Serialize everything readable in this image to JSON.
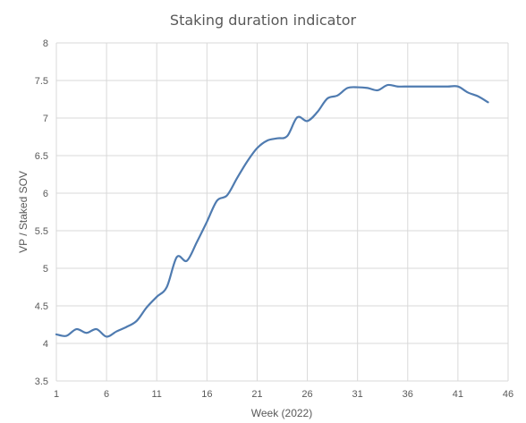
{
  "chart_data": {
    "type": "line",
    "title": "Staking duration indicator",
    "xlabel": "Week (2022)",
    "ylabel": "VP / Staked SOV",
    "xlim": [
      1,
      46
    ],
    "ylim": [
      3.5,
      8
    ],
    "xticks": [
      1,
      6,
      11,
      16,
      21,
      26,
      31,
      36,
      41,
      46
    ],
    "yticks": [
      3.5,
      4,
      4.5,
      5,
      5.5,
      6,
      6.5,
      7,
      7.5,
      8
    ],
    "grid": true,
    "legend": "none",
    "series_color": "#4f7bb0",
    "series": [
      {
        "x": [
          1,
          2,
          3,
          4,
          5,
          6,
          7,
          8,
          9,
          10,
          11,
          12,
          13,
          14,
          15,
          16,
          17,
          18,
          19,
          20,
          21,
          22,
          23,
          24,
          25,
          26,
          27,
          28,
          29,
          30,
          31,
          32,
          33,
          34,
          35,
          36,
          37,
          38,
          39,
          40,
          41,
          42,
          43,
          44
        ],
        "y": [
          4.12,
          4.1,
          4.19,
          4.14,
          4.19,
          4.09,
          4.16,
          4.22,
          4.3,
          4.48,
          4.62,
          4.75,
          5.15,
          5.1,
          5.35,
          5.62,
          5.9,
          5.97,
          6.2,
          6.42,
          6.6,
          6.7,
          6.73,
          6.76,
          7.01,
          6.96,
          7.08,
          7.26,
          7.3,
          7.4,
          7.41,
          7.4,
          7.37,
          7.44,
          7.42,
          7.42,
          7.42,
          7.42,
          7.42,
          7.42,
          7.42,
          7.34,
          7.29,
          7.21
        ]
      }
    ]
  }
}
